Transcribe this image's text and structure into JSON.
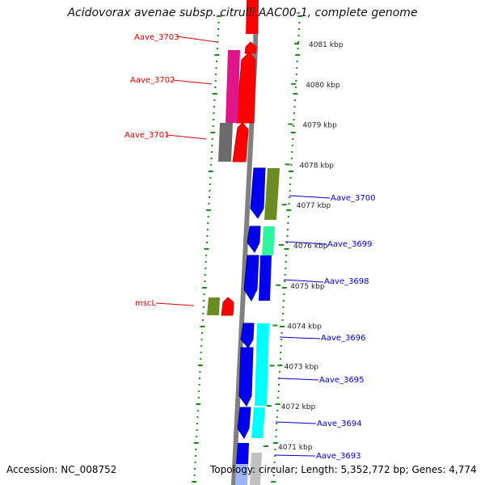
{
  "title": "Acidovorax avenae subsp. citrulli AAC00-1, complete genome",
  "footer": {
    "accession": "Accession: NC_008752",
    "stats": "Topology: circular; Length: 5,352,772 bp; Genes: 4,774"
  },
  "colors": {
    "red": "#ff0000",
    "magenta": "#e0158a",
    "gray": "#6b6b6b",
    "olive": "#6b8b23",
    "blue": "#0000ee",
    "spring_green": "#2ef5a0",
    "cyan": "#00ffff",
    "light_blue": "#9fb4ff",
    "backbone": "#808080",
    "dots": "#1a8a1a",
    "left_label": "#dd0000",
    "right_label": "#0000cc"
  },
  "scale": {
    "unit": "kbp",
    "ticks": [
      {
        "kbp": 4081,
        "label": "4081 kbp"
      },
      {
        "kbp": 4080,
        "label": "4080 kbp"
      },
      {
        "kbp": 4079,
        "label": "4079 kbp"
      },
      {
        "kbp": 4078,
        "label": "4078 kbp"
      },
      {
        "kbp": 4077,
        "label": "4077 kbp"
      },
      {
        "kbp": 4076,
        "label": "4076 kbp"
      },
      {
        "kbp": 4075,
        "label": "4075 kbp"
      },
      {
        "kbp": 4074,
        "label": "4074 kbp"
      },
      {
        "kbp": 4073,
        "label": "4073 kbp"
      },
      {
        "kbp": 4072,
        "label": "4072 kbp"
      },
      {
        "kbp": 4071,
        "label": "4071 kbp"
      }
    ]
  },
  "labels": {
    "left": [
      "Aave_3703",
      "Aave_3702",
      "Aave_3701",
      "mscL"
    ],
    "right": [
      "Aave_3700",
      "Aave_3699",
      "Aave_3698",
      "Aave_3696",
      "Aave_3695",
      "Aave_3694",
      "Aave_3693"
    ]
  }
}
